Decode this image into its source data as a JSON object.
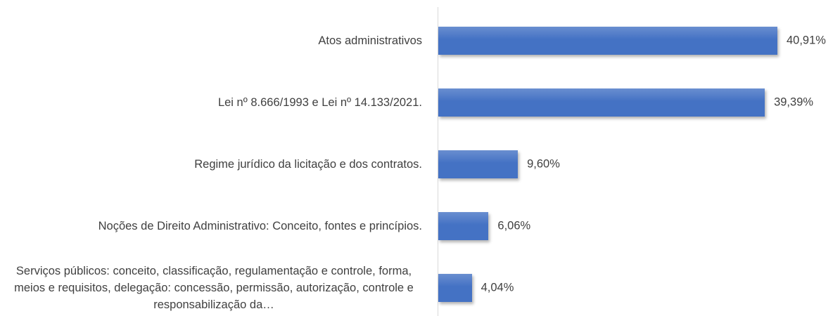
{
  "chart_data": {
    "type": "bar",
    "orientation": "horizontal",
    "categories": [
      "Atos administrativos",
      "Lei nº 8.666/1993 e Lei nº 14.133/2021.",
      "Regime jurídico da licitação e dos contratos.",
      "Noções de Direito Administrativo: Conceito, fontes e princípios.",
      "Serviços públicos: conceito, classificação, regulamentação e controle, forma, meios e requisitos, delegação: concessão, permissão, autorização, controle e responsabilização da…"
    ],
    "values": [
      40.91,
      39.39,
      9.6,
      6.06,
      4.04
    ],
    "value_labels": [
      "40,91%",
      "39,39%",
      "9,60%",
      "6,06%",
      "4,04%"
    ],
    "color": "#4472c4"
  }
}
